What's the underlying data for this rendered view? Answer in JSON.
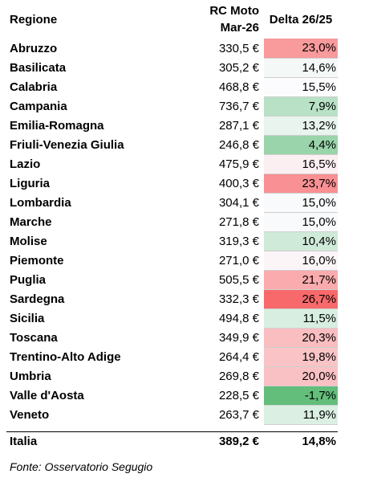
{
  "header": {
    "region": "Regione",
    "rc_moto": "RC Moto Mar-26",
    "delta": "Delta 26/25"
  },
  "rows": [
    {
      "region": "Abruzzo",
      "value": "330,5 €",
      "delta": "23,0%",
      "pct": 23.0
    },
    {
      "region": "Basilicata",
      "value": "305,2 €",
      "delta": "14,6%",
      "pct": 14.6
    },
    {
      "region": "Calabria",
      "value": "468,8 €",
      "delta": "15,5%",
      "pct": 15.5
    },
    {
      "region": "Campania",
      "value": "736,7 €",
      "delta": "7,9%",
      "pct": 7.9
    },
    {
      "region": "Emilia-Romagna",
      "value": "287,1 €",
      "delta": "13,2%",
      "pct": 13.2
    },
    {
      "region": "Friuli-Venezia Giulia",
      "value": "246,8 €",
      "delta": "4,4%",
      "pct": 4.4
    },
    {
      "region": "Lazio",
      "value": "475,9 €",
      "delta": "16,5%",
      "pct": 16.5
    },
    {
      "region": "Liguria",
      "value": "400,3 €",
      "delta": "23,7%",
      "pct": 23.7
    },
    {
      "region": "Lombardia",
      "value": "304,1 €",
      "delta": "15,0%",
      "pct": 15.0
    },
    {
      "region": "Marche",
      "value": "271,8 €",
      "delta": "15,0%",
      "pct": 15.0
    },
    {
      "region": "Molise",
      "value": "319,3 €",
      "delta": "10,4%",
      "pct": 10.4
    },
    {
      "region": "Piemonte",
      "value": "271,0 €",
      "delta": "16,0%",
      "pct": 16.0
    },
    {
      "region": "Puglia",
      "value": "505,5 €",
      "delta": "21,7%",
      "pct": 21.7
    },
    {
      "region": "Sardegna",
      "value": "332,3 €",
      "delta": "26,7%",
      "pct": 26.7
    },
    {
      "region": "Sicilia",
      "value": "494,8 €",
      "delta": "11,5%",
      "pct": 11.5
    },
    {
      "region": "Toscana",
      "value": "349,9 €",
      "delta": "20,3%",
      "pct": 20.3
    },
    {
      "region": "Trentino-Alto Adige",
      "value": "264,4 €",
      "delta": "19,8%",
      "pct": 19.8
    },
    {
      "region": "Umbria",
      "value": "269,8 €",
      "delta": "20,0%",
      "pct": 20.0
    },
    {
      "region": "Valle d'Aosta",
      "value": "228,5 €",
      "delta": "-1,7%",
      "pct": -1.7
    },
    {
      "region": "Veneto",
      "value": "263,7 €",
      "delta": "11,9%",
      "pct": 11.9
    }
  ],
  "total": {
    "region": "Italia",
    "value": "389,2 €",
    "delta": "14,8%"
  },
  "source": "Fonte: Osservatorio Segugio",
  "colors": {
    "low": "#63be7b",
    "mid": "#fcfcff",
    "high": "#f8696b",
    "divider": "#000000"
  }
}
